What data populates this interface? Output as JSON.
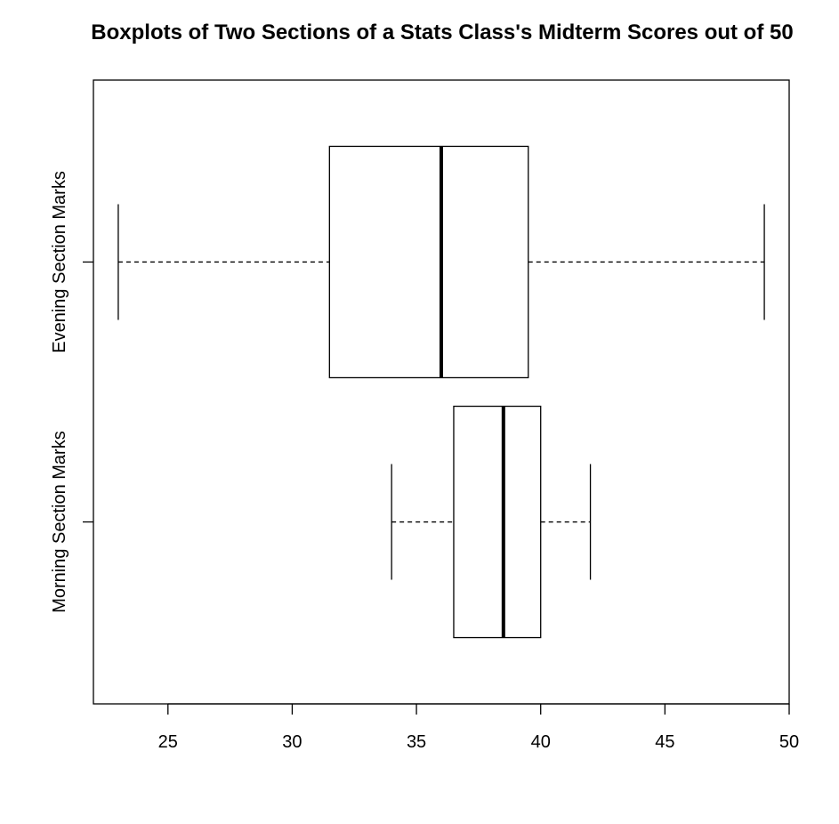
{
  "chart_data": {
    "type": "boxplot",
    "orientation": "horizontal",
    "title": "Boxplots of Two Sections of a Stats Class's Midterm Scores out of 50",
    "xlabel": "",
    "ylabel": "",
    "xlim": [
      22,
      50
    ],
    "x_ticks": [
      "25",
      "30",
      "35",
      "40",
      "45",
      "50"
    ],
    "categories": [
      "Morning Section Marks",
      "Evening Section Marks"
    ],
    "boxes": [
      {
        "category": "Morning Section Marks",
        "whisker_low": 34,
        "q1": 36.5,
        "median": 38.5,
        "q3": 40,
        "whisker_high": 42
      },
      {
        "category": "Evening Section Marks",
        "whisker_low": 23,
        "q1": 31.5,
        "median": 36,
        "q3": 39.5,
        "whisker_high": 49
      }
    ],
    "grid": false,
    "legend": "none"
  }
}
